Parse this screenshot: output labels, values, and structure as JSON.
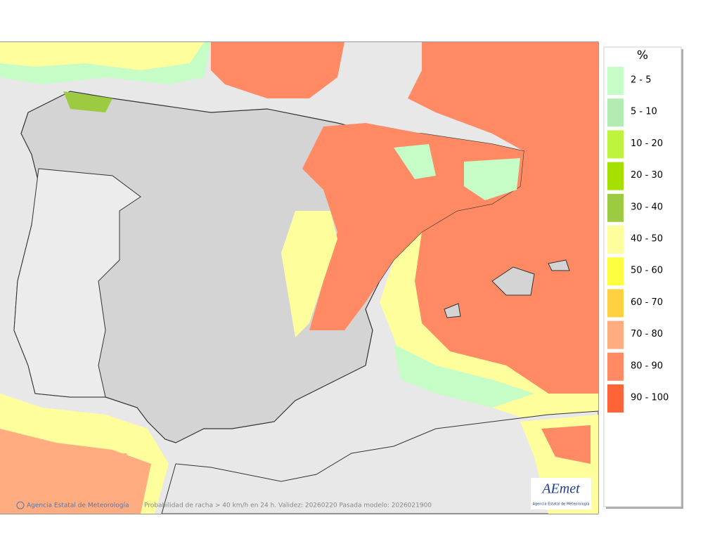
{
  "legend": {
    "title": "%",
    "items": [
      {
        "label": "2 - 5",
        "color": "#c6fcc6"
      },
      {
        "label": "5 - 10",
        "color": "#b2ecb2"
      },
      {
        "label": "10 - 20",
        "color": "#bef53c"
      },
      {
        "label": "20 - 30",
        "color": "#a6e000"
      },
      {
        "label": "30 - 40",
        "color": "#9cca40"
      },
      {
        "label": "40 - 50",
        "color": "#fefe9c"
      },
      {
        "label": "50 - 60",
        "color": "#fefe40"
      },
      {
        "label": "60 - 70",
        "color": "#ffd040"
      },
      {
        "label": "70 - 80",
        "color": "#ffac80"
      },
      {
        "label": "80 - 90",
        "color": "#ff8a64"
      },
      {
        "label": "90 - 100",
        "color": "#ff6438"
      }
    ]
  },
  "footer": {
    "credit": "Agencia Estatal de Meteorología",
    "caption": "Probabilidad de racha > 40 km/h en 24 h. Validez: 20260220 Pasada modelo: 2026021900"
  },
  "logo": {
    "text": "AEmet",
    "subtitle": "Agencia Estatal de Meteorología"
  }
}
